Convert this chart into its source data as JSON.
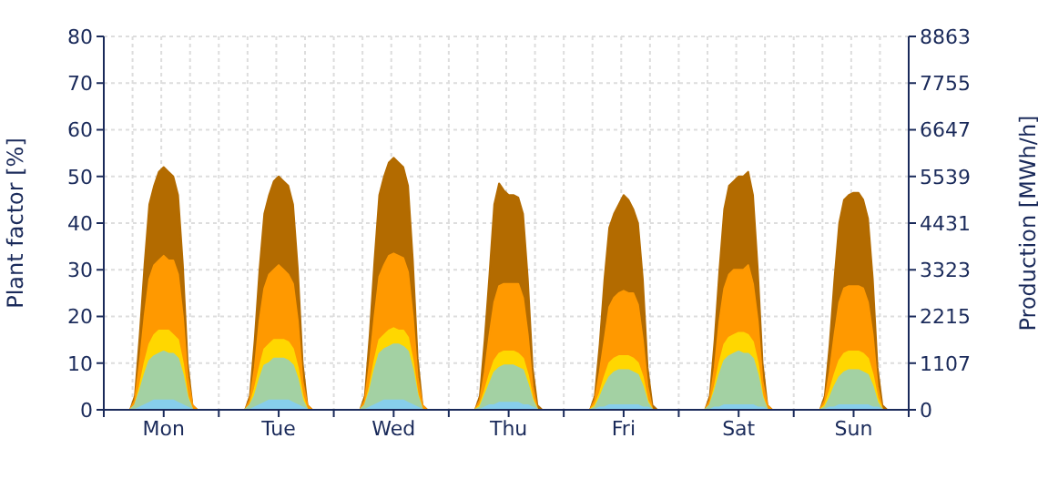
{
  "chart_data": {
    "type": "area",
    "ylabel": "Plant factor [%]",
    "y2label": "Production [MWh/h]",
    "categories": [
      null,
      null,
      null,
      null,
      null,
      null,
      null,
      null,
      null,
      null,
      null,
      null,
      "Mon",
      null,
      null,
      null,
      null,
      null,
      null,
      null,
      null,
      null,
      null,
      null,
      null,
      null,
      null,
      null,
      null,
      null,
      null,
      null,
      null,
      null,
      null,
      null,
      "Tue",
      null,
      null,
      null,
      null,
      null,
      null,
      null,
      null,
      null,
      null,
      null,
      null,
      null,
      null,
      null,
      null,
      null,
      null,
      null,
      null,
      null,
      null,
      null,
      "Wed",
      null,
      null,
      null,
      null,
      null,
      null,
      null,
      null,
      null,
      null,
      null,
      null,
      null,
      null,
      null,
      null,
      null,
      null,
      null,
      null,
      null,
      null,
      null,
      "Thu",
      null,
      null,
      null,
      null,
      null,
      null,
      null,
      null,
      null,
      null,
      null,
      null,
      null,
      null,
      null,
      null,
      null,
      null,
      null,
      null,
      null,
      null,
      null,
      "Fri",
      null,
      null,
      null,
      null,
      null,
      null,
      null,
      null,
      null,
      null,
      null,
      null,
      null,
      null,
      null,
      null,
      null,
      null,
      null,
      null,
      null,
      null,
      null,
      "Sat",
      null,
      null,
      null,
      null,
      null,
      null,
      null,
      null,
      null,
      null,
      null,
      null,
      null,
      null,
      null,
      null,
      null,
      null,
      null,
      null,
      null,
      null,
      null,
      "Sun",
      null,
      null,
      null,
      null,
      null,
      null,
      null,
      null,
      null,
      null,
      null
    ],
    "series": [
      {
        "color": "#b36b00",
        "values": [
          0,
          0,
          0,
          0,
          0,
          0,
          3,
          16,
          31,
          44,
          48,
          51,
          52,
          51,
          50,
          46,
          31,
          10,
          1,
          0,
          0,
          0,
          0,
          0,
          0,
          0,
          0,
          0,
          0,
          0,
          3,
          15,
          30,
          42,
          46,
          49,
          50,
          49,
          48,
          44,
          30,
          10,
          1,
          0,
          0,
          0,
          0,
          0,
          0,
          0,
          0,
          0,
          0,
          0,
          3,
          16,
          32,
          46,
          50,
          53,
          54,
          53,
          52,
          48,
          32,
          11,
          1,
          0,
          0,
          0,
          0,
          0,
          0,
          0,
          0,
          0,
          0,
          0,
          3,
          15,
          29,
          44,
          48.5,
          47,
          46,
          46,
          45.5,
          42,
          28,
          9,
          1,
          0,
          0,
          0,
          0,
          0,
          0,
          0,
          0,
          0,
          0,
          0,
          3,
          14,
          28,
          39,
          42,
          44,
          46,
          45,
          43,
          40,
          28,
          9,
          1,
          0,
          0,
          0,
          0,
          0,
          0,
          0,
          0,
          0,
          0,
          0,
          3,
          15,
          30,
          43,
          48,
          49,
          50,
          50,
          51,
          46,
          30,
          10,
          1,
          0,
          0,
          0,
          0,
          0,
          0,
          0,
          0,
          0,
          0,
          0,
          3,
          14,
          28,
          40,
          45,
          46,
          46.5,
          46.5,
          45,
          41,
          28,
          9,
          1,
          0,
          0,
          0,
          0,
          0
        ]
      },
      {
        "color": "#ff9900",
        "values": [
          0,
          0,
          0,
          0,
          0,
          0,
          2,
          10,
          20,
          28,
          31,
          32,
          33,
          32,
          32,
          29,
          20,
          7,
          1,
          0,
          0,
          0,
          0,
          0,
          0,
          0,
          0,
          0,
          0,
          0,
          2,
          9,
          19,
          26,
          29,
          30,
          31,
          30,
          29,
          27,
          19,
          6,
          1,
          0,
          0,
          0,
          0,
          0,
          0,
          0,
          0,
          0,
          0,
          0,
          2,
          10,
          20,
          28.5,
          31,
          33,
          33.5,
          33,
          32.5,
          29.5,
          20,
          7,
          1,
          0,
          0,
          0,
          0,
          0,
          0,
          0,
          0,
          0,
          0,
          0,
          2,
          8,
          16,
          23,
          26.5,
          27,
          27,
          27,
          27,
          24,
          16,
          5,
          0,
          0,
          0,
          0,
          0,
          0,
          0,
          0,
          0,
          0,
          0,
          0,
          2,
          8,
          15,
          22,
          24,
          25,
          25.5,
          25,
          25,
          22.5,
          15,
          5,
          0,
          0,
          0,
          0,
          0,
          0,
          0,
          0,
          0,
          0,
          0,
          0,
          2,
          9,
          19,
          26,
          29,
          30,
          30,
          30,
          31,
          27,
          19,
          6,
          1,
          0,
          0,
          0,
          0,
          0,
          0,
          0,
          0,
          0,
          0,
          0,
          2,
          8,
          16,
          23,
          26,
          26.5,
          26.5,
          26.5,
          26,
          23,
          16,
          5,
          0,
          0,
          0,
          0,
          0,
          0
        ]
      },
      {
        "color": "#ffd700",
        "values": [
          0,
          0,
          0,
          0,
          0,
          0,
          1,
          5,
          10,
          14,
          16,
          17,
          17,
          17,
          16,
          15,
          10,
          3,
          0,
          0,
          0,
          0,
          0,
          0,
          0,
          0,
          0,
          0,
          0,
          0,
          1,
          4.5,
          9,
          13,
          14,
          15,
          15,
          15,
          14.5,
          13,
          9,
          3,
          0,
          0,
          0,
          0,
          0,
          0,
          0,
          0,
          0,
          0,
          0,
          0,
          1,
          5,
          10.5,
          15,
          16,
          17,
          17.5,
          17,
          17,
          15.5,
          10.5,
          3.5,
          0,
          0,
          0,
          0,
          0,
          0,
          0,
          0,
          0,
          0,
          0,
          0,
          1,
          4,
          7.5,
          10.5,
          12,
          12.5,
          12.5,
          12.5,
          12,
          11,
          7.5,
          2.5,
          0,
          0,
          0,
          0,
          0,
          0,
          0,
          0,
          0,
          0,
          0,
          0,
          1,
          3.5,
          7,
          10,
          11,
          11.5,
          11.5,
          11.5,
          11,
          10,
          7,
          2,
          0,
          0,
          0,
          0,
          0,
          0,
          0,
          0,
          0,
          0,
          0,
          0,
          1,
          5,
          10,
          14,
          15.5,
          16,
          16.5,
          16.5,
          16,
          14.5,
          10,
          3,
          0,
          0,
          0,
          0,
          0,
          0,
          0,
          0,
          0,
          0,
          0,
          0,
          1,
          4,
          7.5,
          10.5,
          12,
          12.5,
          12.5,
          12.5,
          12,
          11,
          7.5,
          2.5,
          0,
          0,
          0,
          0,
          0,
          0
        ]
      },
      {
        "color": "#a3d1a3",
        "values": [
          0,
          0,
          0,
          0,
          0,
          0,
          1,
          4,
          7.5,
          10.5,
          11.5,
          12,
          12.5,
          12,
          12,
          11,
          7.5,
          2.5,
          0,
          0,
          0,
          0,
          0,
          0,
          0,
          0,
          0,
          0,
          0,
          0,
          1,
          3,
          6.5,
          9.5,
          10,
          11,
          11,
          11,
          10.5,
          9.5,
          6.5,
          2,
          0,
          0,
          0,
          0,
          0,
          0,
          0,
          0,
          0,
          0,
          0,
          0,
          1,
          4,
          8.5,
          12,
          13,
          13.5,
          14,
          14,
          13.5,
          12.5,
          8.5,
          3,
          0,
          0,
          0,
          0,
          0,
          0,
          0,
          0,
          0,
          0,
          0,
          0,
          0.5,
          3,
          5.5,
          8,
          9,
          9.5,
          9.5,
          9.5,
          9,
          8.5,
          5.5,
          2,
          0,
          0,
          0,
          0,
          0,
          0,
          0,
          0,
          0,
          0,
          0,
          0,
          0.5,
          2.5,
          5,
          7,
          8,
          8.5,
          8.5,
          8.5,
          8,
          7.5,
          5,
          1.5,
          0,
          0,
          0,
          0,
          0,
          0,
          0,
          0,
          0,
          0,
          0,
          0,
          1,
          4,
          7.5,
          10.5,
          11.5,
          12,
          12.5,
          12,
          12,
          11,
          7.5,
          2.5,
          0,
          0,
          0,
          0,
          0,
          0,
          0,
          0,
          0,
          0,
          0,
          0,
          0.5,
          2.5,
          5,
          7,
          8,
          8.5,
          8.5,
          8.5,
          8,
          7.5,
          5,
          1.5,
          0,
          0,
          0,
          0,
          0,
          0
        ]
      },
      {
        "color": "#87ceeb",
        "values": [
          0,
          0,
          0,
          0,
          0,
          0,
          0,
          0.5,
          1,
          1.5,
          2,
          2,
          2,
          2,
          2,
          1.5,
          1,
          0.5,
          0,
          0,
          0,
          0,
          0,
          0,
          0,
          0,
          0,
          0,
          0,
          0,
          0,
          0.5,
          1,
          1.5,
          2,
          2,
          2,
          2,
          2,
          1.5,
          1,
          0.5,
          0,
          0,
          0,
          0,
          0,
          0,
          0,
          0,
          0,
          0,
          0,
          0,
          0,
          0.5,
          1,
          1.5,
          2,
          2,
          2,
          2,
          2,
          1.5,
          1,
          0.5,
          0,
          0,
          0,
          0,
          0,
          0,
          0,
          0,
          0,
          0,
          0,
          0,
          0,
          0.5,
          1,
          1,
          1.5,
          1.5,
          1.5,
          1.5,
          1.5,
          1,
          1,
          0.5,
          0,
          0,
          0,
          0,
          0,
          0,
          0,
          0,
          0,
          0,
          0,
          0,
          0,
          0.5,
          0.5,
          1,
          1,
          1,
          1,
          1,
          1,
          1,
          0.5,
          0.5,
          0,
          0,
          0,
          0,
          0,
          0,
          0,
          0,
          0,
          0,
          0,
          0,
          0,
          0.5,
          0.5,
          1,
          1,
          1,
          1,
          1,
          1,
          1,
          0.5,
          0.5,
          0,
          0,
          0,
          0,
          0,
          0,
          0,
          0,
          0,
          0,
          0,
          0,
          0,
          0.5,
          0.5,
          1,
          1,
          1,
          1,
          1,
          1,
          1,
          0.5,
          0.5,
          0,
          0,
          0,
          0,
          0,
          0
        ]
      }
    ],
    "ylim": [
      0,
      80
    ],
    "yticks": [
      0,
      10,
      20,
      30,
      40,
      50,
      60,
      70,
      80
    ],
    "y2lim": [
      0,
      8863
    ],
    "y2ticks": [
      0,
      1107,
      2215,
      3323,
      4431,
      5539,
      6647,
      7755,
      8863
    ],
    "grid": true,
    "legend": false
  }
}
